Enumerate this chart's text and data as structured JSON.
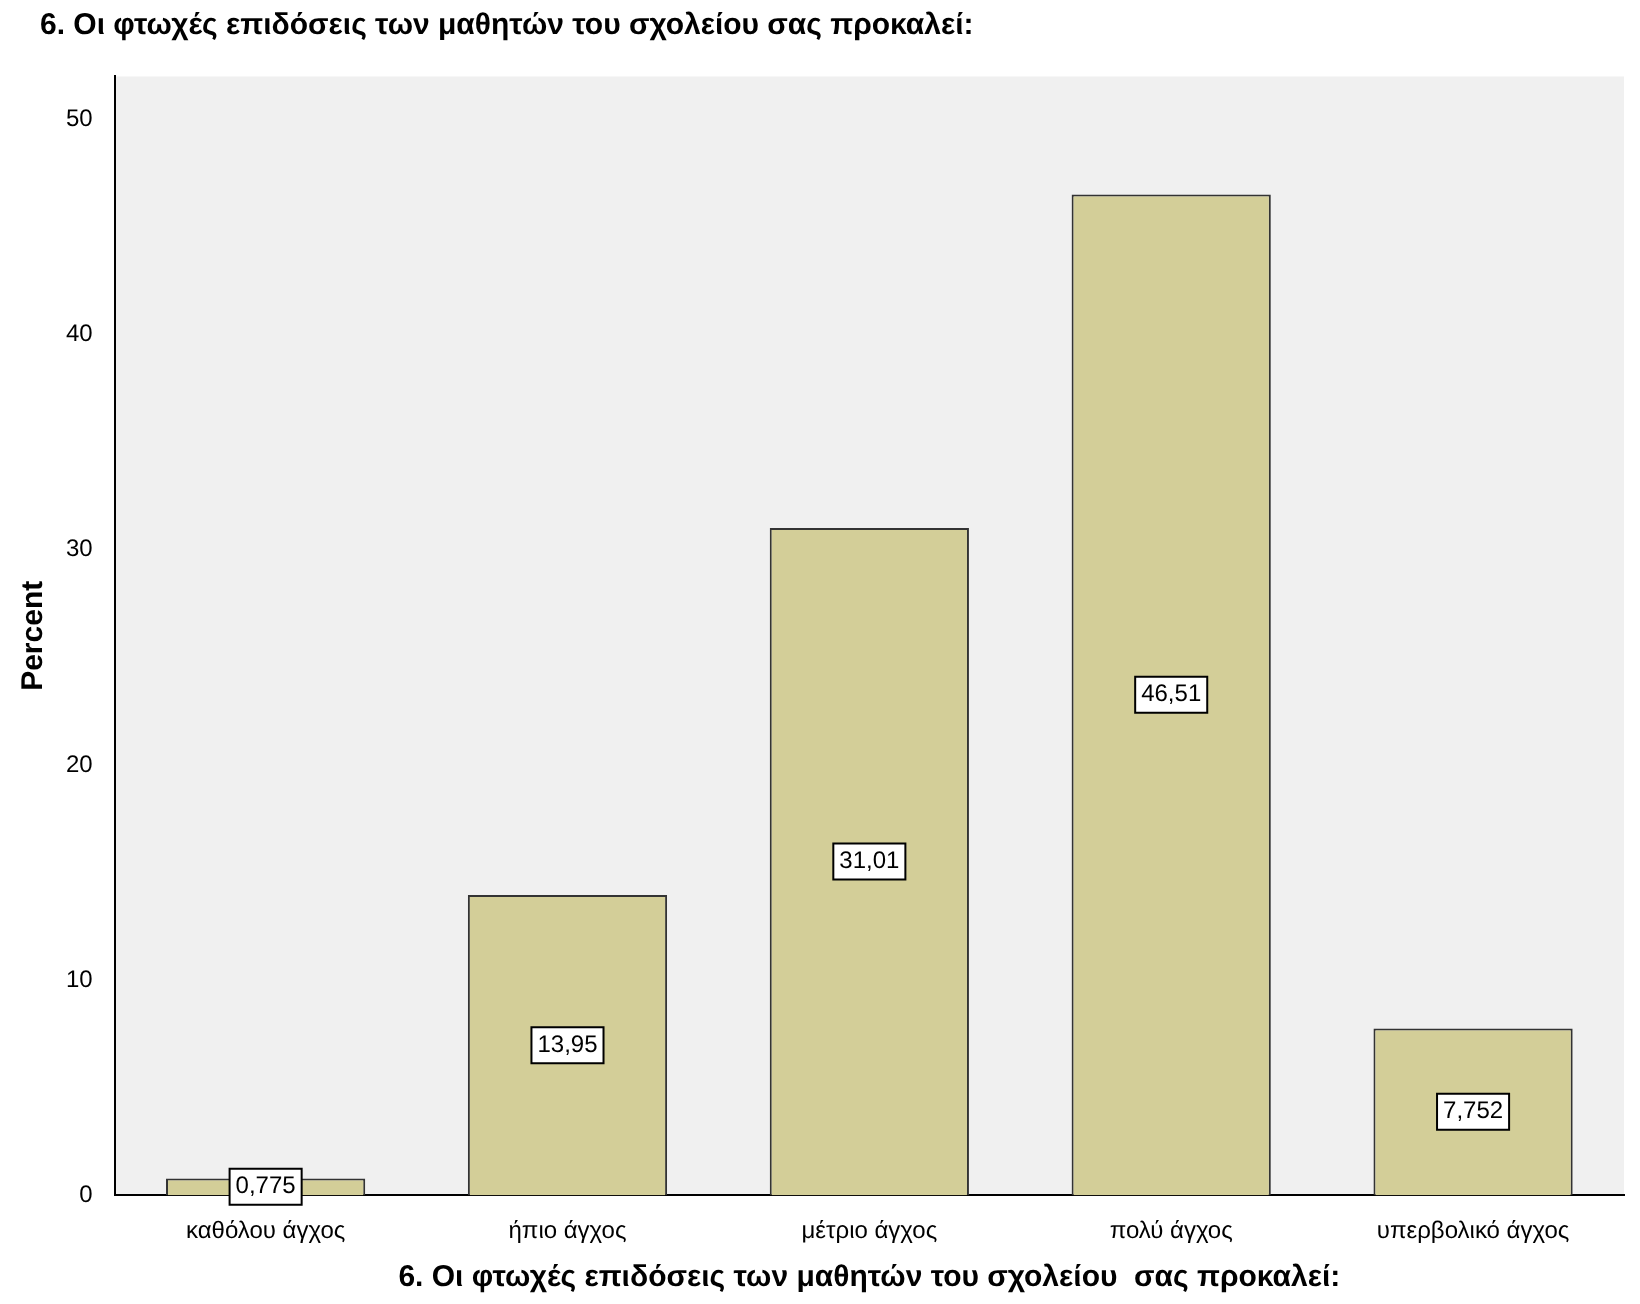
{
  "chart_data": {
    "type": "bar",
    "title": "6. Οι φτωχές επιδόσεις των μαθητών του σχολείου  σας προκαλεί:",
    "xlabel": "6. Οι φτωχές επιδόσεις των μαθητών του σχολείου  σας προκαλεί:",
    "ylabel": "Percent",
    "categories": [
      "καθόλου άγχος",
      "ήπιο άγχος",
      "μέτριο άγχος",
      "πολύ άγχος",
      "υπερβολικό άγχος"
    ],
    "values": [
      0.775,
      13.95,
      31.01,
      46.51,
      7.752
    ],
    "value_labels": [
      "0,775",
      "13,95",
      "31,01",
      "46,51",
      "7,752"
    ],
    "color": "#d3ce98",
    "ylim": [
      0,
      52
    ],
    "yticks": [
      0,
      10,
      20,
      30,
      40,
      50
    ],
    "grid": false,
    "legend": false
  }
}
